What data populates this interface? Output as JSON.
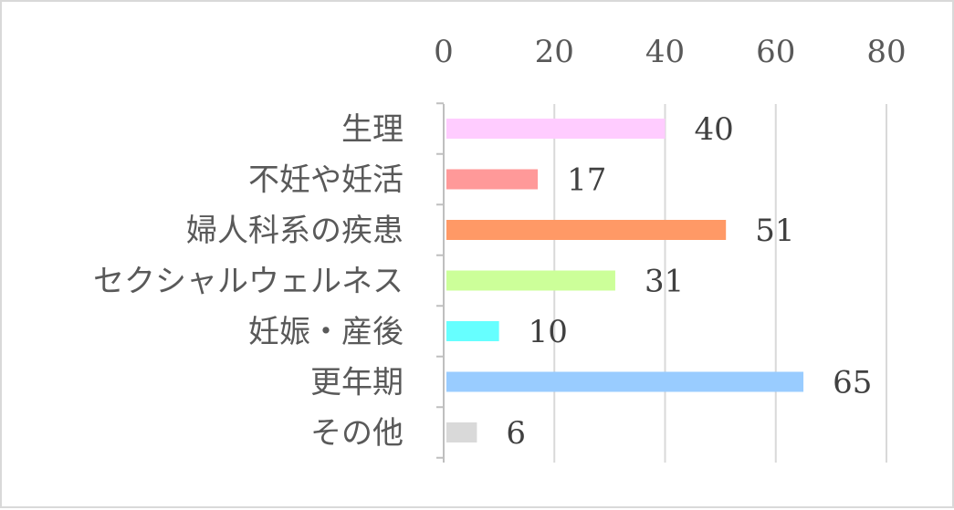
{
  "chart_data": {
    "type": "bar",
    "orientation": "horizontal",
    "categories": [
      "生理",
      "不妊や妊活",
      "婦人科系の疾患",
      "セクシャルウェルネス",
      "妊娠・産後",
      "更年期",
      "その他"
    ],
    "values": [
      40,
      17,
      51,
      31,
      10,
      65,
      6
    ],
    "colors": [
      "#ffccff",
      "#ff9999",
      "#ff9966",
      "#ccff99",
      "#66ffff",
      "#99ccff",
      "#d9d9d9"
    ],
    "xlim": [
      0,
      80
    ],
    "ticks": [
      0,
      20,
      40,
      60,
      80
    ],
    "tick_labels": [
      "0",
      "20",
      "40",
      "60",
      "80"
    ],
    "x_axis_position": "top",
    "grid": true,
    "data_labels": true,
    "title": "",
    "xlabel": "",
    "ylabel": ""
  }
}
